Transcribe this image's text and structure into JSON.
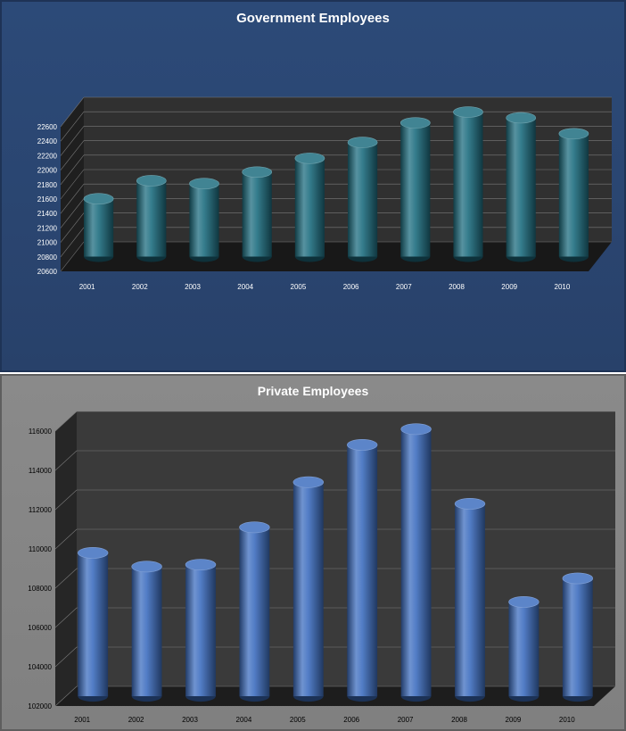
{
  "chart_data": [
    {
      "type": "bar",
      "title": "Government Employees",
      "categories": [
        "2001",
        "2002",
        "2003",
        "2004",
        "2005",
        "2006",
        "2007",
        "2008",
        "2009",
        "2010"
      ],
      "values": [
        21400,
        21650,
        21610,
        21770,
        21960,
        22180,
        22450,
        22600,
        22520,
        22300
      ],
      "ylim": [
        20600,
        22600
      ],
      "yticks": [
        "20600",
        "20800",
        "21000",
        "21200",
        "21400",
        "21600",
        "21800",
        "22000",
        "22200",
        "22400",
        "22600"
      ],
      "xlabel": "",
      "ylabel": "",
      "grid": true,
      "colors": {
        "bar": "#1f6e80",
        "background": "#2c4a78",
        "wall": "#303030",
        "tick": "#ffffff"
      }
    },
    {
      "type": "bar",
      "title": "Private Employees",
      "categories": [
        "2001",
        "2002",
        "2003",
        "2004",
        "2005",
        "2006",
        "2007",
        "2008",
        "2009",
        "2010"
      ],
      "values": [
        109300,
        108600,
        108700,
        110600,
        112900,
        114800,
        115600,
        111800,
        106800,
        108000
      ],
      "ylim": [
        102000,
        116000
      ],
      "yticks": [
        "102000",
        "104000",
        "106000",
        "108000",
        "110000",
        "112000",
        "114000",
        "116000"
      ],
      "xlabel": "",
      "ylabel": "",
      "grid": true,
      "colors": {
        "bar": "#3f6fc0",
        "background": "#888888",
        "wall": "#3a3a3a",
        "tick": "#000000"
      }
    }
  ]
}
